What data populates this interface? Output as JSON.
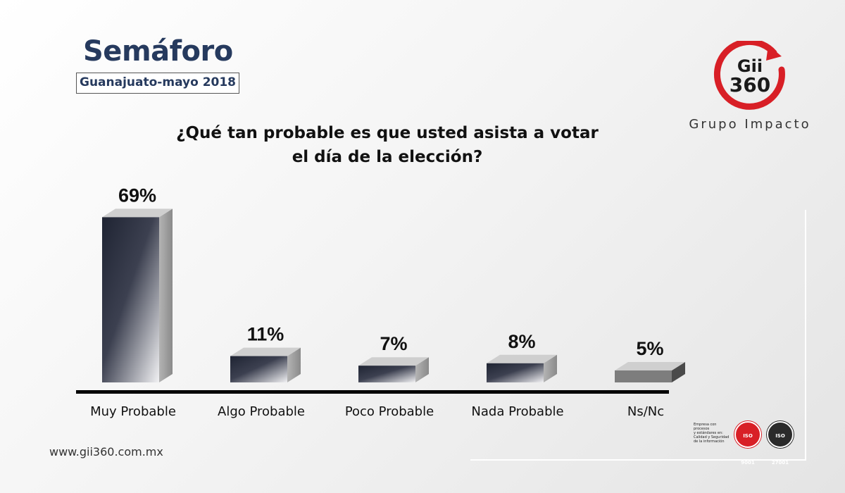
{
  "header": {
    "title": "Semáforo",
    "subtitle": "Guanajuato-mayo 2018"
  },
  "question": {
    "line1": "¿Qué tan probable es que usted asista a votar",
    "line2": "el día de la elección?"
  },
  "logo": {
    "line1": "Gii",
    "line2": "360",
    "tagline": "Grupo Impacto"
  },
  "footer": {
    "url": "www.gii360.com.mx"
  },
  "certifications": {
    "text_line1": "Empresa con procesos",
    "text_line2": "y estándares en:",
    "text_line3": "Calidad y Seguridad",
    "text_line4": "de la información",
    "seal1": "ISO 9001",
    "seal2": "ISO 27001"
  },
  "colors": {
    "title": "#263a5e",
    "brand_red": "#d81f26",
    "bar_dark": "#1f2433",
    "bar_light": "#f2f2f4",
    "bar_side": "#9a9a9a",
    "ns_front": "#7d7d7d",
    "ns_side": "#4a4a4a",
    "axis": "#000000"
  },
  "chart_data": {
    "type": "bar",
    "title": "¿Qué tan probable es que usted asista a votar el día de la elección?",
    "categories": [
      "Muy Probable",
      "Algo Probable",
      "Poco Probable",
      "Nada Probable",
      "Ns/Nc"
    ],
    "values": [
      69,
      11,
      7,
      8,
      5
    ],
    "labels": [
      "69%",
      "11%",
      "7%",
      "8%",
      "5%"
    ],
    "unit": "%",
    "xlabel": "",
    "ylabel": "",
    "grid": false,
    "legend": "none"
  }
}
